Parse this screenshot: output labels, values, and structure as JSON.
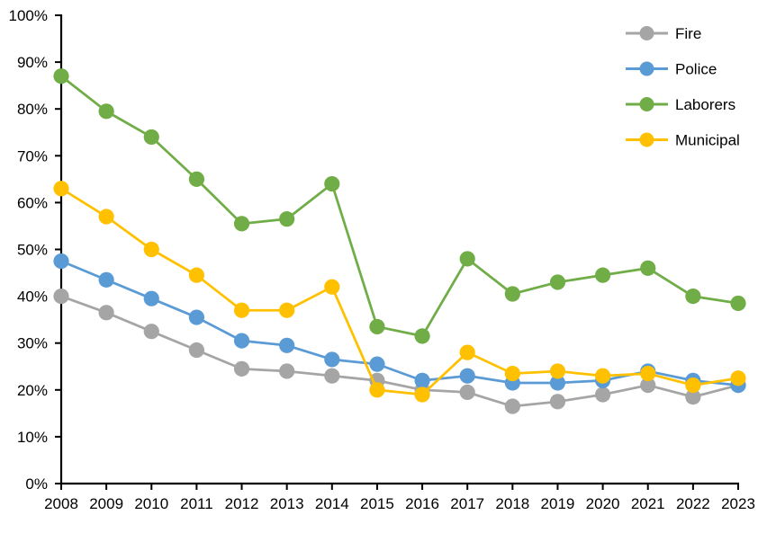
{
  "chart_data": {
    "type": "line",
    "title": "",
    "xlabel": "",
    "ylabel": "",
    "grid": false,
    "legend_position": "top-right",
    "background_color": "#FFFFFF",
    "axis_color": "#000000",
    "text_color": "#000000",
    "y_axis": {
      "min": 0,
      "max": 100,
      "step": 10,
      "unit": "%"
    },
    "y_tick_labels": [
      "0%",
      "10%",
      "20%",
      "30%",
      "40%",
      "50%",
      "60%",
      "70%",
      "80%",
      "90%",
      "100%"
    ],
    "categories": [
      "2008",
      "2009",
      "2010",
      "2011",
      "2012",
      "2013",
      "2014",
      "2015",
      "2016",
      "2017",
      "2018",
      "2019",
      "2020",
      "2021",
      "2022",
      "2023"
    ],
    "series": [
      {
        "name": "Fire",
        "color": "#A5A5A5",
        "values": [
          40,
          36.5,
          32.5,
          28.5,
          24.5,
          24,
          23,
          22,
          20,
          19.5,
          16.5,
          17.5,
          19,
          21,
          18.5,
          21
        ]
      },
      {
        "name": "Police",
        "color": "#5B9BD5",
        "values": [
          47.5,
          43.5,
          39.5,
          35.5,
          30.5,
          29.5,
          26.5,
          25.5,
          22,
          23,
          21.5,
          21.5,
          22,
          24,
          22,
          21
        ]
      },
      {
        "name": "Laborers",
        "color": "#70AD47",
        "values": [
          87,
          79.5,
          74,
          65,
          55.5,
          56.5,
          64,
          33.5,
          31.5,
          48,
          40.5,
          43,
          44.5,
          46,
          40,
          38.5
        ]
      },
      {
        "name": "Municipal",
        "color": "#FFC000",
        "values": [
          63,
          57,
          50,
          44.5,
          37,
          37,
          42,
          20,
          19,
          28,
          23.5,
          24,
          23,
          23.5,
          21,
          22.5
        ]
      }
    ]
  }
}
